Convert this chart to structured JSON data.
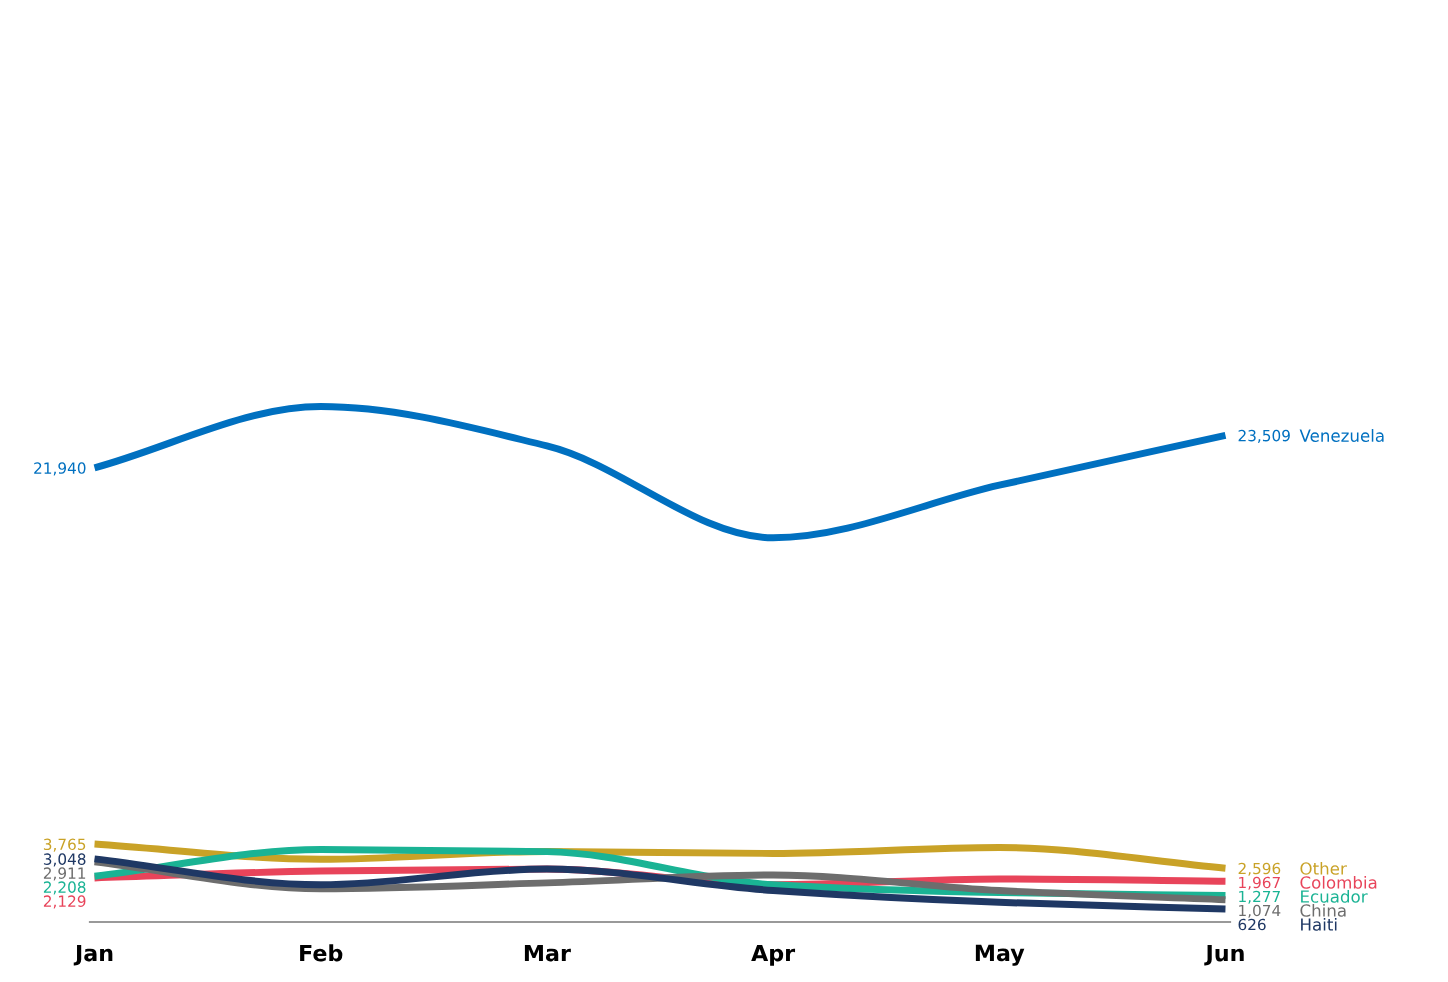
{
  "chart_data": {
    "type": "line",
    "categories": [
      "Jan",
      "Feb",
      "Mar",
      "Apr",
      "May",
      "Jun"
    ],
    "tick_labels": "x",
    "grid": false,
    "legend": false,
    "marker": "none",
    "line_style": "solid",
    "series": [
      {
        "name": "Venezuela",
        "color": "#0070c0",
        "values": [
          21940,
          24900,
          23000,
          18560,
          21100,
          23509
        ],
        "value_labels": [
          "21,940",
          null,
          null,
          null,
          null,
          "23,509"
        ]
      },
      {
        "name": "Other",
        "color": "#c9a227",
        "values": [
          3765,
          3030,
          3410,
          3310,
          3600,
          2596
        ],
        "value_labels": [
          "3,765",
          null,
          null,
          null,
          null,
          "2,596"
        ]
      },
      {
        "name": "Colombia",
        "color": "#e8445a",
        "values": [
          2129,
          2460,
          2560,
          1800,
          2080,
          1967
        ],
        "value_labels": [
          "2,129",
          null,
          null,
          null,
          null,
          "1,967"
        ]
      },
      {
        "name": "Ecuador",
        "color": "#1ab394",
        "values": [
          2208,
          3500,
          3400,
          1800,
          1420,
          1277
        ],
        "value_labels": [
          "2,208",
          null,
          null,
          null,
          null,
          "1,277"
        ]
      },
      {
        "name": "China",
        "color": "#6d6d6d",
        "values": [
          2911,
          1610,
          1890,
          2270,
          1520,
          1074
        ],
        "value_labels": [
          "2,911",
          null,
          null,
          null,
          null,
          "1,074"
        ]
      },
      {
        "name": "Haiti",
        "color": "#1f3864",
        "values": [
          3048,
          1800,
          2560,
          1520,
          950,
          626
        ],
        "value_labels": [
          "3,048",
          null,
          null,
          null,
          null,
          "626"
        ]
      }
    ]
  }
}
